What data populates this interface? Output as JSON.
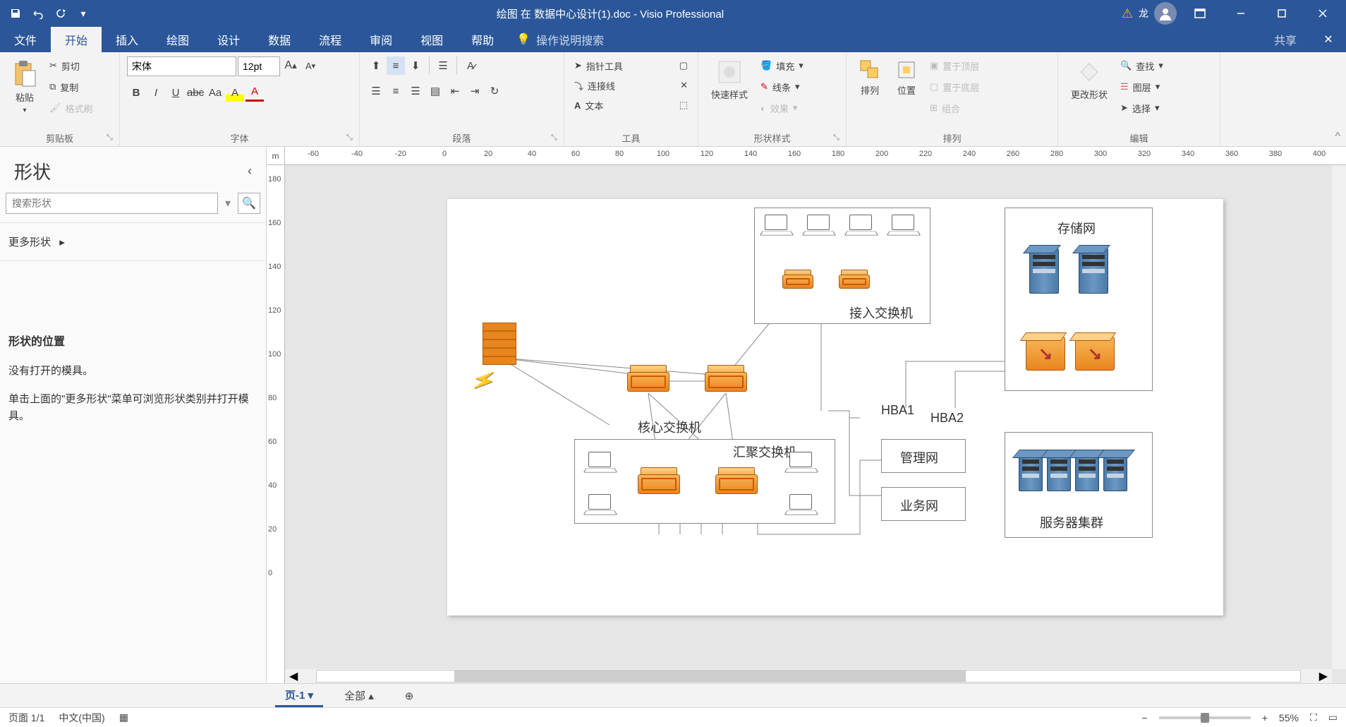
{
  "titlebar": {
    "document_title": "绘图 在 数据中心设计(1).doc  -  Visio Professional",
    "user_initial": "龙"
  },
  "menu": {
    "tabs": [
      "文件",
      "开始",
      "插入",
      "绘图",
      "设计",
      "数据",
      "流程",
      "审阅",
      "视图",
      "帮助"
    ],
    "active_index": 1,
    "tell_me": "操作说明搜索",
    "share": "共享"
  },
  "ribbon": {
    "clipboard": {
      "label": "剪贴板",
      "paste": "粘贴",
      "cut": "剪切",
      "copy": "复制",
      "format_painter": "格式刷"
    },
    "font": {
      "label": "字体",
      "name": "宋体",
      "size": "12pt"
    },
    "paragraph": {
      "label": "段落"
    },
    "tools": {
      "label": "工具",
      "pointer": "指针工具",
      "connector": "连接线",
      "text": "文本"
    },
    "shape_styles": {
      "label": "形状样式",
      "quick": "快速样式",
      "fill": "填充",
      "line": "线条",
      "effects": "效果"
    },
    "arrange": {
      "label": "排列",
      "arrange_btn": "排列",
      "position": "位置",
      "bring_front": "置于顶层",
      "send_back": "置于底层",
      "group": "组合"
    },
    "edit": {
      "label": "编辑",
      "change_shape": "更改形状",
      "find": "查找",
      "layers": "图层",
      "select": "选择"
    }
  },
  "shapes_panel": {
    "title": "形状",
    "search_placeholder": "搜索形状",
    "more": "更多形状",
    "position_title": "形状的位置",
    "no_stencil": "没有打开的模具。",
    "hint": "单击上面的\"更多形状\"菜单可浏览形状类别并打开模具。"
  },
  "ruler": {
    "unit": "m",
    "h_ticks": [
      -60,
      -40,
      -20,
      0,
      20,
      40,
      60,
      80,
      100,
      120,
      140,
      160,
      180,
      200,
      220,
      240,
      260,
      280,
      300,
      320,
      340,
      360,
      380,
      400
    ],
    "v_ticks": [
      180,
      160,
      140,
      120,
      100,
      80,
      60,
      40,
      20,
      0
    ]
  },
  "diagram": {
    "access_switch": "接入交换机",
    "core_switch": "核心交换机",
    "agg_switch": "汇聚交换机",
    "storage_net": "存储网",
    "mgmt_net": "管理网",
    "biz_net": "业务网",
    "server_cluster": "服务器集群",
    "hba1": "HBA1",
    "hba2": "HBA2"
  },
  "page_tabs": {
    "page1": "页-1",
    "all": "全部"
  },
  "statusbar": {
    "page": "页面 1/1",
    "lang": "中文(中国)",
    "zoom": "55%"
  }
}
